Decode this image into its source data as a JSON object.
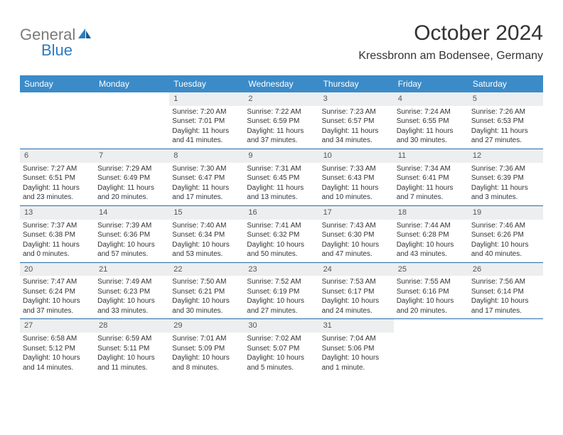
{
  "logo": {
    "text1": "General",
    "text2": "Blue"
  },
  "title": "October 2024",
  "location": "Kressbronn am Bodensee, Germany",
  "day_headers": [
    "Sunday",
    "Monday",
    "Tuesday",
    "Wednesday",
    "Thursday",
    "Friday",
    "Saturday"
  ],
  "colors": {
    "header_bg": "#3b8bc9",
    "header_fg": "#ffffff",
    "row_divider": "#2b6ca8",
    "daynum_bg": "#eceeef",
    "text": "#333333",
    "logo_gray": "#7a7a7a",
    "logo_blue": "#2b7bbf",
    "page_bg": "#ffffff"
  },
  "typography": {
    "title_fontsize": 30,
    "location_fontsize": 16,
    "header_fontsize": 12,
    "cell_fontsize": 10,
    "daynum_fontsize": 11
  },
  "weeks": [
    [
      {
        "n": "",
        "lines": []
      },
      {
        "n": "",
        "lines": []
      },
      {
        "n": "1",
        "lines": [
          "Sunrise: 7:20 AM",
          "Sunset: 7:01 PM",
          "Daylight: 11 hours and 41 minutes."
        ]
      },
      {
        "n": "2",
        "lines": [
          "Sunrise: 7:22 AM",
          "Sunset: 6:59 PM",
          "Daylight: 11 hours and 37 minutes."
        ]
      },
      {
        "n": "3",
        "lines": [
          "Sunrise: 7:23 AM",
          "Sunset: 6:57 PM",
          "Daylight: 11 hours and 34 minutes."
        ]
      },
      {
        "n": "4",
        "lines": [
          "Sunrise: 7:24 AM",
          "Sunset: 6:55 PM",
          "Daylight: 11 hours and 30 minutes."
        ]
      },
      {
        "n": "5",
        "lines": [
          "Sunrise: 7:26 AM",
          "Sunset: 6:53 PM",
          "Daylight: 11 hours and 27 minutes."
        ]
      }
    ],
    [
      {
        "n": "6",
        "lines": [
          "Sunrise: 7:27 AM",
          "Sunset: 6:51 PM",
          "Daylight: 11 hours and 23 minutes."
        ]
      },
      {
        "n": "7",
        "lines": [
          "Sunrise: 7:29 AM",
          "Sunset: 6:49 PM",
          "Daylight: 11 hours and 20 minutes."
        ]
      },
      {
        "n": "8",
        "lines": [
          "Sunrise: 7:30 AM",
          "Sunset: 6:47 PM",
          "Daylight: 11 hours and 17 minutes."
        ]
      },
      {
        "n": "9",
        "lines": [
          "Sunrise: 7:31 AM",
          "Sunset: 6:45 PM",
          "Daylight: 11 hours and 13 minutes."
        ]
      },
      {
        "n": "10",
        "lines": [
          "Sunrise: 7:33 AM",
          "Sunset: 6:43 PM",
          "Daylight: 11 hours and 10 minutes."
        ]
      },
      {
        "n": "11",
        "lines": [
          "Sunrise: 7:34 AM",
          "Sunset: 6:41 PM",
          "Daylight: 11 hours and 7 minutes."
        ]
      },
      {
        "n": "12",
        "lines": [
          "Sunrise: 7:36 AM",
          "Sunset: 6:39 PM",
          "Daylight: 11 hours and 3 minutes."
        ]
      }
    ],
    [
      {
        "n": "13",
        "lines": [
          "Sunrise: 7:37 AM",
          "Sunset: 6:38 PM",
          "Daylight: 11 hours and 0 minutes."
        ]
      },
      {
        "n": "14",
        "lines": [
          "Sunrise: 7:39 AM",
          "Sunset: 6:36 PM",
          "Daylight: 10 hours and 57 minutes."
        ]
      },
      {
        "n": "15",
        "lines": [
          "Sunrise: 7:40 AM",
          "Sunset: 6:34 PM",
          "Daylight: 10 hours and 53 minutes."
        ]
      },
      {
        "n": "16",
        "lines": [
          "Sunrise: 7:41 AM",
          "Sunset: 6:32 PM",
          "Daylight: 10 hours and 50 minutes."
        ]
      },
      {
        "n": "17",
        "lines": [
          "Sunrise: 7:43 AM",
          "Sunset: 6:30 PM",
          "Daylight: 10 hours and 47 minutes."
        ]
      },
      {
        "n": "18",
        "lines": [
          "Sunrise: 7:44 AM",
          "Sunset: 6:28 PM",
          "Daylight: 10 hours and 43 minutes."
        ]
      },
      {
        "n": "19",
        "lines": [
          "Sunrise: 7:46 AM",
          "Sunset: 6:26 PM",
          "Daylight: 10 hours and 40 minutes."
        ]
      }
    ],
    [
      {
        "n": "20",
        "lines": [
          "Sunrise: 7:47 AM",
          "Sunset: 6:24 PM",
          "Daylight: 10 hours and 37 minutes."
        ]
      },
      {
        "n": "21",
        "lines": [
          "Sunrise: 7:49 AM",
          "Sunset: 6:23 PM",
          "Daylight: 10 hours and 33 minutes."
        ]
      },
      {
        "n": "22",
        "lines": [
          "Sunrise: 7:50 AM",
          "Sunset: 6:21 PM",
          "Daylight: 10 hours and 30 minutes."
        ]
      },
      {
        "n": "23",
        "lines": [
          "Sunrise: 7:52 AM",
          "Sunset: 6:19 PM",
          "Daylight: 10 hours and 27 minutes."
        ]
      },
      {
        "n": "24",
        "lines": [
          "Sunrise: 7:53 AM",
          "Sunset: 6:17 PM",
          "Daylight: 10 hours and 24 minutes."
        ]
      },
      {
        "n": "25",
        "lines": [
          "Sunrise: 7:55 AM",
          "Sunset: 6:16 PM",
          "Daylight: 10 hours and 20 minutes."
        ]
      },
      {
        "n": "26",
        "lines": [
          "Sunrise: 7:56 AM",
          "Sunset: 6:14 PM",
          "Daylight: 10 hours and 17 minutes."
        ]
      }
    ],
    [
      {
        "n": "27",
        "lines": [
          "Sunrise: 6:58 AM",
          "Sunset: 5:12 PM",
          "Daylight: 10 hours and 14 minutes."
        ]
      },
      {
        "n": "28",
        "lines": [
          "Sunrise: 6:59 AM",
          "Sunset: 5:11 PM",
          "Daylight: 10 hours and 11 minutes."
        ]
      },
      {
        "n": "29",
        "lines": [
          "Sunrise: 7:01 AM",
          "Sunset: 5:09 PM",
          "Daylight: 10 hours and 8 minutes."
        ]
      },
      {
        "n": "30",
        "lines": [
          "Sunrise: 7:02 AM",
          "Sunset: 5:07 PM",
          "Daylight: 10 hours and 5 minutes."
        ]
      },
      {
        "n": "31",
        "lines": [
          "Sunrise: 7:04 AM",
          "Sunset: 5:06 PM",
          "Daylight: 10 hours and 1 minute."
        ]
      },
      {
        "n": "",
        "lines": []
      },
      {
        "n": "",
        "lines": []
      }
    ]
  ]
}
